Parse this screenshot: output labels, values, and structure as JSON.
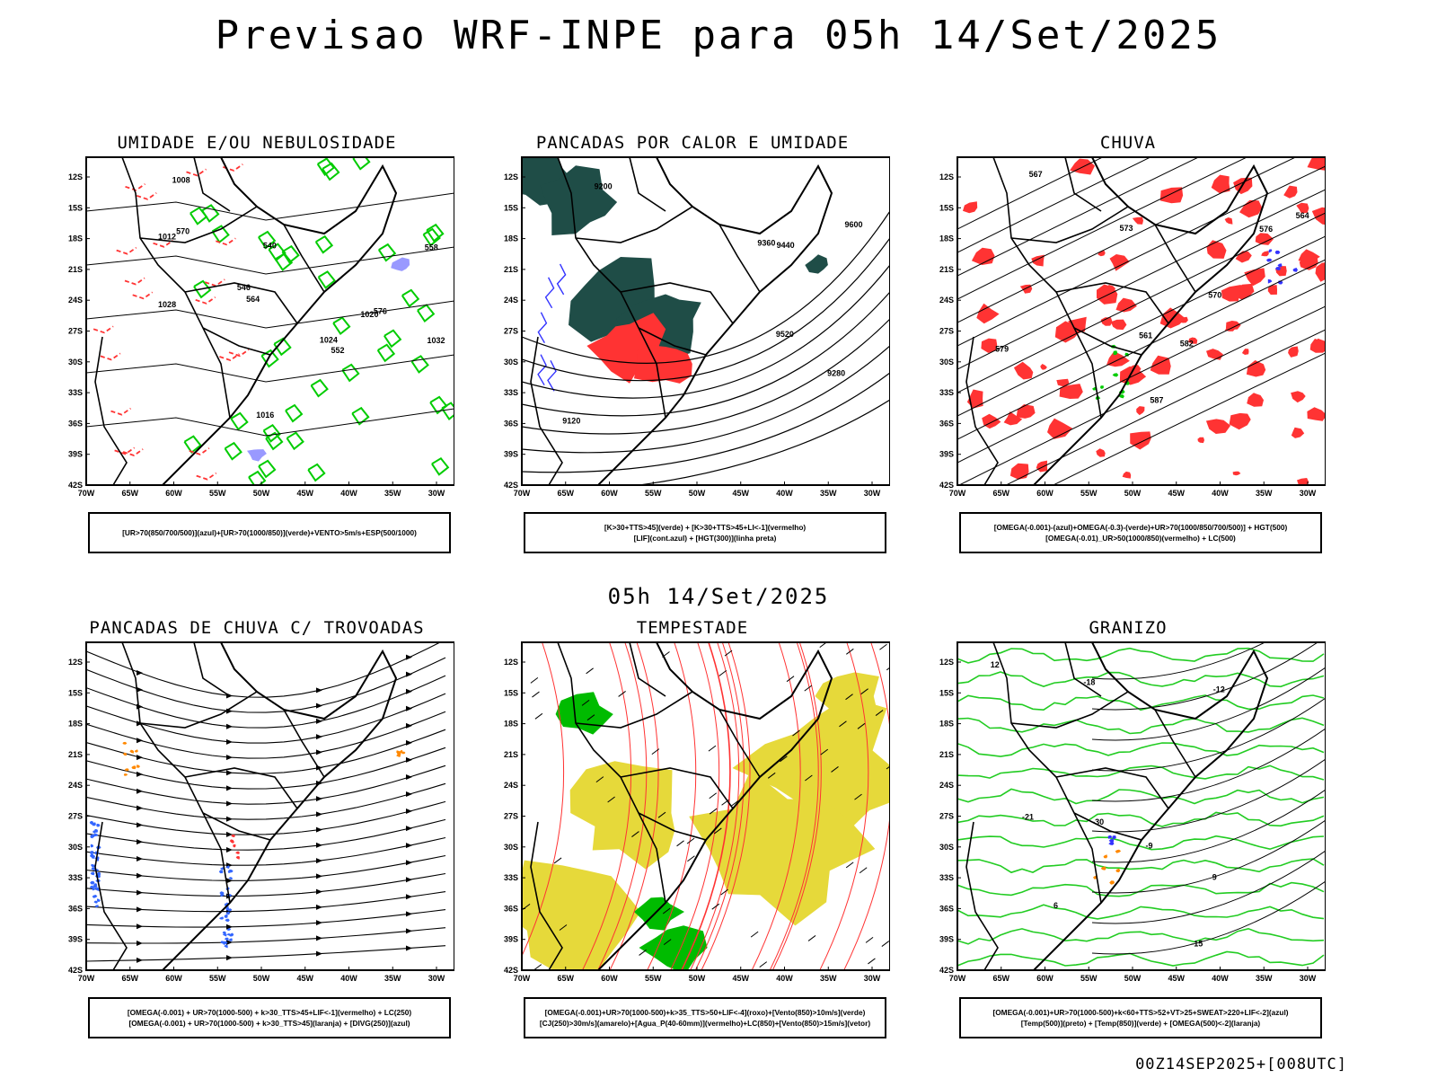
{
  "header": {
    "title": "Previsao WRF-INPE  para 05h 14/Set/2025"
  },
  "middle_time": "05h 14/Set/2025",
  "footer_stamp": "00Z14SEP2025+[008UTC]",
  "axes": {
    "lat_ticks": [
      "12S",
      "15S",
      "18S",
      "21S",
      "24S",
      "27S",
      "30S",
      "33S",
      "36S",
      "39S",
      "42S"
    ],
    "lon_ticks": [
      "70W",
      "65W",
      "60W",
      "55W",
      "50W",
      "45W",
      "40W",
      "35W",
      "30W"
    ]
  },
  "panels": [
    {
      "id": "umidade",
      "title": "UMIDADE E/OU NEBULOSIDADE",
      "caption": [
        "[UR>70(850/700/500)](azul)+[UR>70(1000/850)](verde)+VENTO>5m/s+ESP(500/1000)"
      ],
      "contour_labels": [
        "1016",
        "1012",
        "1008",
        "1020",
        "1024",
        "1028",
        "1032",
        "576",
        "570",
        "564",
        "558",
        "552",
        "546",
        "540"
      ],
      "colors": {
        "primary": "#00cc00",
        "secondary": "#ff3333",
        "tertiary": "#9999ff"
      }
    },
    {
      "id": "pancadas-calor",
      "title": "PANCADAS POR CALOR E UMIDADE",
      "caption": [
        "[K>30+TTS>45](verde) + [K>30+TTS>45+LI<-1](vermelho)",
        "[LIF](cont.azul) + [HGT(300)](linha preta)"
      ],
      "contour_labels": [
        "9600",
        "9520",
        "9440",
        "9360",
        "9280",
        "9200",
        "9120"
      ],
      "colors": {
        "primary": "#1f4d47",
        "secondary": "#ff3333",
        "tertiary": "#3333ff"
      }
    },
    {
      "id": "chuva",
      "title": "CHUVA",
      "caption": [
        "[OMEGA(-0.001)-(azul)+OMEGA(-0.3)-(verde)+UR>70(1000/850/700/500)] + HGT(500)",
        "[OMEGA(-0.01)_UR>50(1000/850)(vermelho) + LC(500)"
      ],
      "contour_labels": [
        "587",
        "579",
        "576",
        "573",
        "570",
        "567",
        "564",
        "561",
        "582"
      ],
      "colors": {
        "primary": "#ff3333",
        "secondary": "#3333ff",
        "tertiary": "#00cc00"
      }
    },
    {
      "id": "pancadas-trovoadas",
      "title": "PANCADAS DE CHUVA C/ TROVOADAS",
      "caption": [
        "[OMEGA(-0.001) + UR>70(1000-500) + k>30_TTS>45+LIF<-1](vermelho) + LC(250)",
        "[OMEGA(-0.001) + UR>70(1000-500) + k>30_TTS>45](laranja) + [DIVG(250)](azul)"
      ],
      "contour_labels": [],
      "colors": {
        "primary": "#3366ff",
        "secondary": "#ff8800",
        "tertiary": "#ff3333"
      }
    },
    {
      "id": "tempestade",
      "title": "TEMPESTADE",
      "caption": [
        "[OMEGA(-0.001)+UR>70(1000-500)+k>35_TTS>50+LIF<-4](roxo)+[Vento(850)>10m/s](verde)",
        "[CJ(250)>30m/s](amarelo)+[Agua_P(40-60mm)](vermelho)+LC(850)+[Vento(850)>15m/s](vetor)"
      ],
      "contour_labels": [],
      "colors": {
        "primary": "#e6d93a",
        "secondary": "#00bb00",
        "tertiary": "#ff3333"
      }
    },
    {
      "id": "granizo",
      "title": "GRANIZO",
      "caption": [
        "[OMEGA(-0.001)+UR>70(1000-500)+k<60+TTS>52+VT>25+SWEAT>220+LIF<-2](azul)",
        "[Temp(500)](preto) + [Temp(850)](verde) + [OMEGA(500)<-2](laranja)"
      ],
      "contour_labels": [
        "-9",
        "-12",
        "-15",
        "-18",
        "-21",
        "-30",
        "6",
        "9",
        "12"
      ],
      "colors": {
        "primary": "#22cc22",
        "secondary": "#ff8800",
        "tertiary": "#3333ff"
      }
    }
  ]
}
